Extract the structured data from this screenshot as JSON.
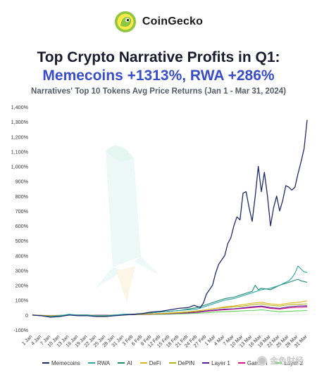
{
  "brand": {
    "name": "CoinGecko",
    "logo_icon": "gecko-logo-icon"
  },
  "watermark": {
    "text": "金色财经",
    "icon": "gold-coin-icon"
  },
  "chart_data": {
    "type": "line",
    "title_line1": "Top Crypto Narrative Profits in Q1:",
    "title_line2": "Memecoins +1313%, RWA +286%",
    "subtitle": "Narratives' Top 10 Tokens Avg Price Returns (Jan 1 - Mar 31, 2024)",
    "xlabel": "",
    "ylabel": "",
    "ylim": [
      -100,
      1400
    ],
    "yticks": [
      "1,400%",
      "1,300%",
      "1,200%",
      "1,100%",
      "1,000%",
      "900%",
      "800%",
      "700%",
      "600%",
      "500%",
      "400%",
      "300%",
      "200%",
      "100%",
      "0",
      "-100%"
    ],
    "ytick_values": [
      1400,
      1300,
      1200,
      1100,
      1000,
      900,
      800,
      700,
      600,
      500,
      400,
      300,
      200,
      100,
      0,
      -100
    ],
    "x_labels": [
      "1 Jan",
      "4 Jan",
      "7 Jan",
      "10 Jan",
      "13 Jan",
      "16 Jan",
      "19 Jan",
      "22 Jan",
      "25 Jan",
      "28 Jan",
      "31 Jan",
      "3 Feb",
      "6 Feb",
      "9 Feb",
      "12 Feb",
      "15 Feb",
      "18 Feb",
      "21 Feb",
      "24 Feb",
      "27 Feb",
      "1 Mar",
      "4 Mar",
      "7 Mar",
      "10 Mar",
      "13 Mar",
      "16 Mar",
      "19 Mar",
      "22 Mar",
      "25 Mar",
      "28 Mar",
      "31 Mar"
    ],
    "x_day_of_year": [
      1,
      4,
      7,
      10,
      13,
      16,
      19,
      22,
      25,
      28,
      31,
      34,
      37,
      40,
      43,
      46,
      49,
      52,
      55,
      58,
      61,
      64,
      67,
      70,
      73,
      76,
      79,
      82,
      85,
      88,
      91
    ],
    "grid": false,
    "legend_position": "bottom",
    "series": [
      {
        "name": "Memecoins",
        "color": "#1f2a6b",
        "points": [
          [
            1,
            0
          ],
          [
            4,
            -5
          ],
          [
            7,
            -15
          ],
          [
            10,
            -10
          ],
          [
            13,
            0
          ],
          [
            16,
            -5
          ],
          [
            19,
            -5
          ],
          [
            22,
            -10
          ],
          [
            25,
            -10
          ],
          [
            28,
            -5
          ],
          [
            31,
            0
          ],
          [
            34,
            5
          ],
          [
            37,
            10
          ],
          [
            40,
            20
          ],
          [
            43,
            25
          ],
          [
            46,
            35
          ],
          [
            49,
            45
          ],
          [
            52,
            50
          ],
          [
            54,
            65
          ],
          [
            56,
            50
          ],
          [
            57,
            80
          ],
          [
            58,
            140
          ],
          [
            60,
            200
          ],
          [
            61,
            280
          ],
          [
            62,
            340
          ],
          [
            64,
            400
          ],
          [
            65,
            480
          ],
          [
            66,
            520
          ],
          [
            67,
            600
          ],
          [
            68,
            660
          ],
          [
            69,
            640
          ],
          [
            70,
            820
          ],
          [
            71,
            830
          ],
          [
            72,
            720
          ],
          [
            73,
            630
          ],
          [
            74,
            800
          ],
          [
            75,
            1000
          ],
          [
            76,
            830
          ],
          [
            77,
            960
          ],
          [
            78,
            800
          ],
          [
            79,
            600
          ],
          [
            80,
            720
          ],
          [
            81,
            800
          ],
          [
            82,
            700
          ],
          [
            83,
            770
          ],
          [
            84,
            870
          ],
          [
            85,
            860
          ],
          [
            86,
            840
          ],
          [
            87,
            860
          ],
          [
            88,
            950
          ],
          [
            89,
            1030
          ],
          [
            90,
            1120
          ],
          [
            91,
            1313
          ]
        ]
      },
      {
        "name": "RWA",
        "color": "#2aa6a6",
        "points": [
          [
            1,
            0
          ],
          [
            4,
            -5
          ],
          [
            7,
            -10
          ],
          [
            10,
            -5
          ],
          [
            13,
            5
          ],
          [
            16,
            0
          ],
          [
            19,
            0
          ],
          [
            22,
            -5
          ],
          [
            25,
            -5
          ],
          [
            28,
            0
          ],
          [
            31,
            5
          ],
          [
            34,
            5
          ],
          [
            37,
            10
          ],
          [
            40,
            15
          ],
          [
            43,
            20
          ],
          [
            46,
            25
          ],
          [
            49,
            30
          ],
          [
            52,
            35
          ],
          [
            55,
            40
          ],
          [
            58,
            60
          ],
          [
            61,
            80
          ],
          [
            64,
            100
          ],
          [
            67,
            110
          ],
          [
            70,
            130
          ],
          [
            73,
            150
          ],
          [
            76,
            170
          ],
          [
            79,
            180
          ],
          [
            82,
            200
          ],
          [
            85,
            230
          ],
          [
            86,
            250
          ],
          [
            87,
            280
          ],
          [
            88,
            330
          ],
          [
            89,
            310
          ],
          [
            90,
            290
          ],
          [
            91,
            286
          ]
        ]
      },
      {
        "name": "AI",
        "color": "#1f8a6a",
        "points": [
          [
            1,
            0
          ],
          [
            4,
            -5
          ],
          [
            7,
            -10
          ],
          [
            10,
            -5
          ],
          [
            13,
            0
          ],
          [
            16,
            0
          ],
          [
            19,
            0
          ],
          [
            22,
            -5
          ],
          [
            25,
            -5
          ],
          [
            28,
            0
          ],
          [
            31,
            5
          ],
          [
            34,
            5
          ],
          [
            37,
            10
          ],
          [
            40,
            15
          ],
          [
            43,
            20
          ],
          [
            46,
            25
          ],
          [
            49,
            30
          ],
          [
            52,
            40
          ],
          [
            55,
            50
          ],
          [
            58,
            70
          ],
          [
            61,
            90
          ],
          [
            64,
            110
          ],
          [
            67,
            120
          ],
          [
            70,
            140
          ],
          [
            73,
            160
          ],
          [
            74,
            200
          ],
          [
            75,
            170
          ],
          [
            76,
            180
          ],
          [
            79,
            170
          ],
          [
            82,
            200
          ],
          [
            85,
            220
          ],
          [
            88,
            240
          ],
          [
            89,
            230
          ],
          [
            90,
            225
          ],
          [
            91,
            220
          ]
        ]
      },
      {
        "name": "DeFi",
        "color": "#e3b21b",
        "points": [
          [
            1,
            0
          ],
          [
            4,
            -3
          ],
          [
            7,
            -6
          ],
          [
            10,
            -4
          ],
          [
            13,
            0
          ],
          [
            16,
            0
          ],
          [
            19,
            0
          ],
          [
            22,
            -3
          ],
          [
            25,
            -3
          ],
          [
            28,
            0
          ],
          [
            31,
            2
          ],
          [
            34,
            4
          ],
          [
            37,
            6
          ],
          [
            40,
            8
          ],
          [
            43,
            10
          ],
          [
            46,
            12
          ],
          [
            49,
            15
          ],
          [
            52,
            20
          ],
          [
            55,
            25
          ],
          [
            58,
            35
          ],
          [
            61,
            45
          ],
          [
            64,
            55
          ],
          [
            67,
            60
          ],
          [
            70,
            70
          ],
          [
            73,
            80
          ],
          [
            76,
            85
          ],
          [
            79,
            75
          ],
          [
            82,
            70
          ],
          [
            85,
            80
          ],
          [
            88,
            85
          ],
          [
            91,
            95
          ]
        ]
      },
      {
        "name": "DePIN",
        "color": "#b5b51a",
        "points": [
          [
            1,
            0
          ],
          [
            4,
            -3
          ],
          [
            7,
            -6
          ],
          [
            10,
            -4
          ],
          [
            13,
            0
          ],
          [
            16,
            0
          ],
          [
            19,
            0
          ],
          [
            22,
            -3
          ],
          [
            25,
            -3
          ],
          [
            28,
            0
          ],
          [
            31,
            2
          ],
          [
            34,
            4
          ],
          [
            37,
            6
          ],
          [
            40,
            8
          ],
          [
            43,
            10
          ],
          [
            46,
            14
          ],
          [
            49,
            18
          ],
          [
            52,
            22
          ],
          [
            55,
            28
          ],
          [
            58,
            35
          ],
          [
            61,
            45
          ],
          [
            64,
            50
          ],
          [
            67,
            55
          ],
          [
            70,
            60
          ],
          [
            73,
            70
          ],
          [
            76,
            75
          ],
          [
            79,
            65
          ],
          [
            82,
            60
          ],
          [
            85,
            70
          ],
          [
            88,
            72
          ],
          [
            91,
            75
          ]
        ]
      },
      {
        "name": "Layer 1",
        "color": "#5e1a9e",
        "points": [
          [
            1,
            0
          ],
          [
            4,
            -3
          ],
          [
            7,
            -5
          ],
          [
            10,
            -3
          ],
          [
            13,
            0
          ],
          [
            16,
            0
          ],
          [
            19,
            0
          ],
          [
            22,
            -2
          ],
          [
            25,
            -2
          ],
          [
            28,
            0
          ],
          [
            31,
            2
          ],
          [
            34,
            3
          ],
          [
            37,
            5
          ],
          [
            40,
            6
          ],
          [
            43,
            8
          ],
          [
            46,
            10
          ],
          [
            49,
            12
          ],
          [
            52,
            15
          ],
          [
            55,
            20
          ],
          [
            58,
            28
          ],
          [
            61,
            35
          ],
          [
            64,
            40
          ],
          [
            67,
            42
          ],
          [
            70,
            48
          ],
          [
            73,
            55
          ],
          [
            76,
            60
          ],
          [
            79,
            50
          ],
          [
            82,
            45
          ],
          [
            85,
            55
          ],
          [
            88,
            60
          ],
          [
            91,
            62
          ]
        ]
      },
      {
        "name": "GameFi",
        "color": "#d9187e",
        "points": [
          [
            1,
            0
          ],
          [
            4,
            -3
          ],
          [
            7,
            -5
          ],
          [
            10,
            -3
          ],
          [
            13,
            0
          ],
          [
            16,
            0
          ],
          [
            19,
            0
          ],
          [
            22,
            -2
          ],
          [
            25,
            -2
          ],
          [
            28,
            0
          ],
          [
            31,
            2
          ],
          [
            34,
            3
          ],
          [
            37,
            5
          ],
          [
            40,
            6
          ],
          [
            43,
            8
          ],
          [
            46,
            10
          ],
          [
            49,
            12
          ],
          [
            52,
            14
          ],
          [
            55,
            18
          ],
          [
            58,
            25
          ],
          [
            61,
            30
          ],
          [
            64,
            35
          ],
          [
            67,
            40
          ],
          [
            70,
            45
          ],
          [
            73,
            50
          ],
          [
            76,
            55
          ],
          [
            79,
            45
          ],
          [
            82,
            40
          ],
          [
            85,
            48
          ],
          [
            88,
            52
          ],
          [
            91,
            55
          ]
        ]
      },
      {
        "name": "Layer 2",
        "color": "#5fd35f",
        "points": [
          [
            1,
            0
          ],
          [
            4,
            -2
          ],
          [
            7,
            -4
          ],
          [
            10,
            -2
          ],
          [
            13,
            0
          ],
          [
            16,
            0
          ],
          [
            19,
            0
          ],
          [
            22,
            -2
          ],
          [
            25,
            -2
          ],
          [
            28,
            0
          ],
          [
            31,
            1
          ],
          [
            34,
            2
          ],
          [
            37,
            3
          ],
          [
            40,
            4
          ],
          [
            43,
            5
          ],
          [
            46,
            6
          ],
          [
            49,
            8
          ],
          [
            52,
            10
          ],
          [
            55,
            12
          ],
          [
            58,
            15
          ],
          [
            61,
            20
          ],
          [
            64,
            22
          ],
          [
            67,
            25
          ],
          [
            70,
            28
          ],
          [
            73,
            30
          ],
          [
            76,
            35
          ],
          [
            79,
            28
          ],
          [
            82,
            22
          ],
          [
            85,
            25
          ],
          [
            88,
            28
          ],
          [
            91,
            30
          ]
        ]
      }
    ],
    "legend_labels": [
      "Memecoins",
      "RWA",
      "AI",
      "DeFi",
      "DePIN",
      "Layer 1",
      "GameFi",
      "Layer 2"
    ]
  }
}
